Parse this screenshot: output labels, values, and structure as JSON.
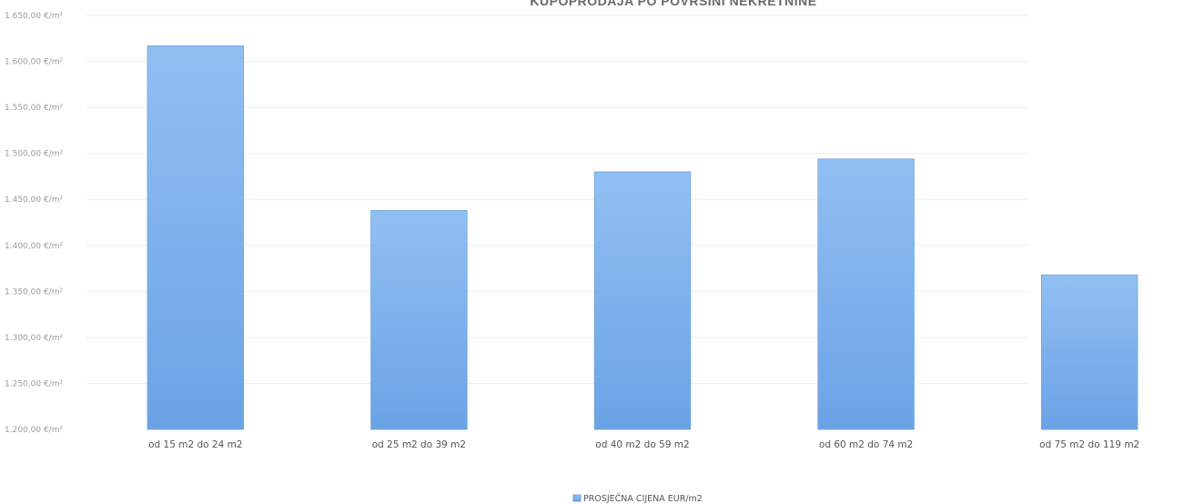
{
  "chart_data": {
    "type": "bar",
    "title": "KUPOPRODAJA PO POVRŠINI NEKRETNINE",
    "categories": [
      "od 15 m2 do 24 m2",
      "od 25 m2 do 39 m2",
      "od 40 m2 do 59 m2",
      "od 60 m2 do 74 m2",
      "od 75 m2 do 119 m2"
    ],
    "series": [
      {
        "name": "PROSJEČNA CIJENA EUR/m2",
        "values": [
          1617,
          1438,
          1480,
          1494,
          1368
        ]
      }
    ],
    "ylim": [
      1200,
      1650
    ],
    "yticks": [
      1200,
      1250,
      1300,
      1350,
      1400,
      1450,
      1500,
      1550,
      1600,
      1650
    ],
    "ytick_labels": [
      "1.200,00 €/m²",
      "1.250,00 €/m²",
      "1.300,00 €/m²",
      "1.350,00 €/m²",
      "1.400,00 €/m²",
      "1.450,00 €/m²",
      "1.500,00 €/m²",
      "1.550,00 €/m²",
      "1.600,00 €/m²",
      "1.650,00 €/m²"
    ],
    "grid": true,
    "legend_position": "bottom-center",
    "bar_color": "#7fb2ec"
  }
}
